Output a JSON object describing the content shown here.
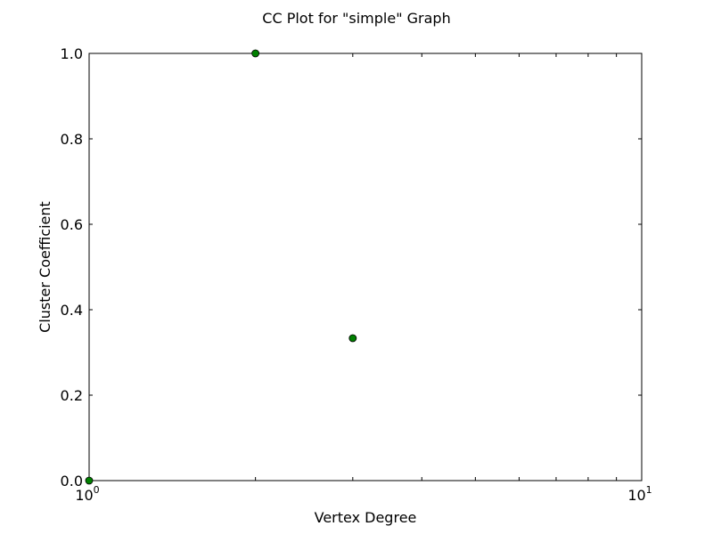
{
  "chart_data": {
    "type": "scatter",
    "title": "CC Plot for \"simple\" Graph",
    "xlabel": "Vertex Degree",
    "ylabel": "Cluster Coefficient",
    "xscale": "log",
    "xlim": [
      1,
      10
    ],
    "ylim": [
      0,
      1
    ],
    "x_ticks": [
      {
        "base": "10",
        "exp": "0",
        "value": 1
      },
      {
        "base": "10",
        "exp": "1",
        "value": 10
      }
    ],
    "y_ticks": [
      "0.0",
      "0.2",
      "0.4",
      "0.6",
      "0.8",
      "1.0"
    ],
    "grid": false,
    "marker_color": "#008000",
    "points": [
      {
        "x": 1,
        "y": 0.0
      },
      {
        "x": 2,
        "y": 1.0
      },
      {
        "x": 3,
        "y": 0.3333
      }
    ]
  }
}
